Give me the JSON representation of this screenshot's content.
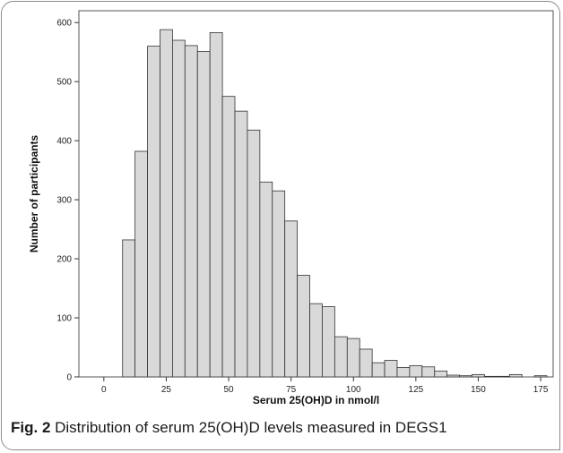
{
  "chart_data": {
    "type": "bar",
    "xlabel": "Serum 25(OH)D in nmol/l",
    "ylabel": "Number of participants",
    "xlim": [
      -10,
      180
    ],
    "ylim": [
      0,
      620
    ],
    "bin_width": 5,
    "x_ticks": [
      0,
      25,
      50,
      75,
      100,
      125,
      150,
      175
    ],
    "y_ticks": [
      0,
      100,
      200,
      300,
      400,
      500,
      600
    ],
    "bar_color": "#d9d9d9",
    "grid": false,
    "bins": [
      {
        "start": 7.5,
        "value": 232
      },
      {
        "start": 12.5,
        "value": 382
      },
      {
        "start": 17.5,
        "value": 560
      },
      {
        "start": 22.5,
        "value": 588
      },
      {
        "start": 27.5,
        "value": 570
      },
      {
        "start": 32.5,
        "value": 561
      },
      {
        "start": 37.5,
        "value": 551
      },
      {
        "start": 42.5,
        "value": 583
      },
      {
        "start": 47.5,
        "value": 475
      },
      {
        "start": 52.5,
        "value": 450
      },
      {
        "start": 57.5,
        "value": 418
      },
      {
        "start": 62.5,
        "value": 330
      },
      {
        "start": 67.5,
        "value": 315
      },
      {
        "start": 72.5,
        "value": 264
      },
      {
        "start": 77.5,
        "value": 172
      },
      {
        "start": 82.5,
        "value": 124
      },
      {
        "start": 87.5,
        "value": 119
      },
      {
        "start": 92.5,
        "value": 68
      },
      {
        "start": 97.5,
        "value": 65
      },
      {
        "start": 102.5,
        "value": 47
      },
      {
        "start": 107.5,
        "value": 24
      },
      {
        "start": 112.5,
        "value": 28
      },
      {
        "start": 117.5,
        "value": 16
      },
      {
        "start": 122.5,
        "value": 19
      },
      {
        "start": 127.5,
        "value": 17
      },
      {
        "start": 132.5,
        "value": 10
      },
      {
        "start": 137.5,
        "value": 3
      },
      {
        "start": 142.5,
        "value": 2
      },
      {
        "start": 147.5,
        "value": 4
      },
      {
        "start": 152.5,
        "value": 1
      },
      {
        "start": 157.5,
        "value": 1
      },
      {
        "start": 162.5,
        "value": 4
      },
      {
        "start": 167.5,
        "value": 0
      },
      {
        "start": 172.5,
        "value": 2
      }
    ]
  },
  "caption": {
    "label": "Fig. 2",
    "text": " Distribution of serum 25(OH)D levels measured in DEGS1"
  }
}
